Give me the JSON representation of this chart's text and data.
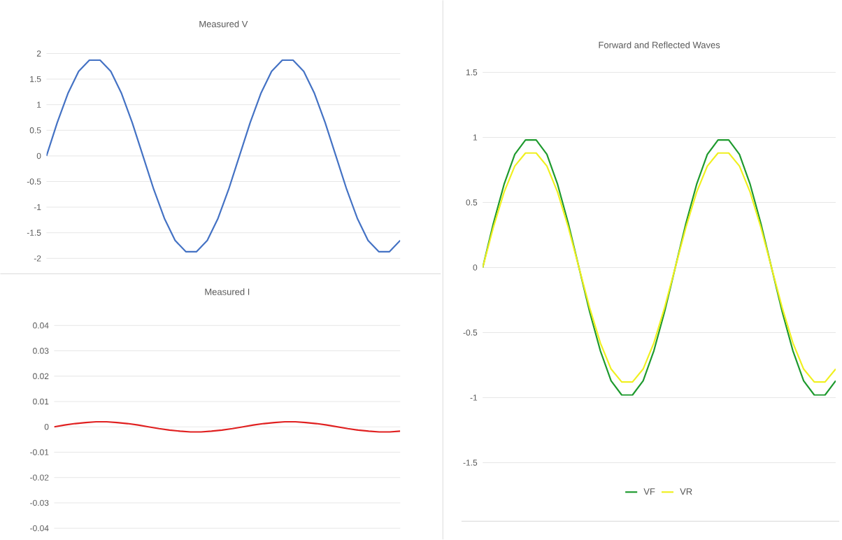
{
  "chart_data": [
    {
      "type": "line",
      "title": "Measured V",
      "categories": [
        null,
        null,
        null,
        null,
        null,
        null,
        null,
        null,
        null,
        null,
        null,
        null,
        null,
        null,
        null,
        null,
        null,
        null,
        null,
        null,
        null,
        null,
        null,
        null,
        null,
        null,
        null,
        null,
        null,
        null,
        null,
        null,
        null,
        null
      ],
      "series": [
        {
          "color": "#4472c4",
          "values": [
            0,
            0.65,
            1.22,
            1.65,
            1.87,
            1.87,
            1.65,
            1.22,
            0.65,
            0,
            -0.65,
            -1.22,
            -1.65,
            -1.87,
            -1.87,
            -1.65,
            -1.22,
            -0.65,
            0,
            0.65,
            1.22,
            1.65,
            1.87,
            1.87,
            1.65,
            1.22,
            0.65,
            0,
            -0.65,
            -1.22,
            -1.65,
            -1.87,
            -1.87,
            -1.65
          ]
        }
      ],
      "ylim": [
        -2,
        2
      ],
      "yticks": [
        -2,
        -1.5,
        -1,
        -0.5,
        0,
        0.5,
        1,
        1.5,
        2
      ],
      "grid": "y"
    },
    {
      "type": "line",
      "title": "Forward and Reflected Waves",
      "categories": [
        null,
        null,
        null,
        null,
        null,
        null,
        null,
        null,
        null,
        null,
        null,
        null,
        null,
        null,
        null,
        null,
        null,
        null,
        null,
        null,
        null,
        null,
        null,
        null,
        null,
        null,
        null,
        null,
        null,
        null,
        null,
        null,
        null,
        null
      ],
      "series": [
        {
          "name": "VF",
          "color": "#1e9a2e",
          "values": [
            0,
            0.34,
            0.64,
            0.87,
            0.98,
            0.98,
            0.87,
            0.64,
            0.34,
            0,
            -0.34,
            -0.64,
            -0.87,
            -0.98,
            -0.98,
            -0.87,
            -0.64,
            -0.34,
            0,
            0.34,
            0.64,
            0.87,
            0.98,
            0.98,
            0.87,
            0.64,
            0.34,
            0,
            -0.34,
            -0.64,
            -0.87,
            -0.98,
            -0.98,
            -0.87
          ]
        },
        {
          "name": "VR",
          "color": "#f0f020",
          "values": [
            0,
            0.31,
            0.58,
            0.78,
            0.88,
            0.88,
            0.78,
            0.58,
            0.31,
            0,
            -0.31,
            -0.58,
            -0.78,
            -0.88,
            -0.88,
            -0.78,
            -0.58,
            -0.31,
            0,
            0.31,
            0.58,
            0.78,
            0.88,
            0.88,
            0.78,
            0.58,
            0.31,
            0,
            -0.31,
            -0.58,
            -0.78,
            -0.88,
            -0.88,
            -0.78
          ]
        }
      ],
      "ylim": [
        -1.95,
        1.5
      ],
      "yticks": [
        -1.5,
        -1,
        -0.5,
        0,
        0.5,
        1,
        1.5
      ],
      "grid": "y",
      "legend": "bottom"
    },
    {
      "type": "line",
      "title": "Measured I",
      "categories": [
        null,
        null,
        null,
        null,
        null,
        null,
        null,
        null,
        null,
        null,
        null,
        null,
        null,
        null,
        null,
        null,
        null,
        null,
        null,
        null,
        null,
        null,
        null,
        null,
        null,
        null,
        null,
        null,
        null,
        null,
        null,
        null,
        null,
        null
      ],
      "series": [
        {
          "color": "#e02020",
          "values": [
            0,
            0.0007,
            0.0013,
            0.0017,
            0.002,
            0.002,
            0.0017,
            0.0013,
            0.0007,
            0,
            -0.0007,
            -0.0013,
            -0.0017,
            -0.002,
            -0.002,
            -0.0017,
            -0.0013,
            -0.0007,
            0,
            0.0007,
            0.0013,
            0.0017,
            0.002,
            0.002,
            0.0017,
            0.0013,
            0.0007,
            0,
            -0.0007,
            -0.0013,
            -0.0017,
            -0.002,
            -0.002,
            -0.0017
          ]
        }
      ],
      "ylim": [
        -0.04,
        0.04
      ],
      "yticks": [
        -0.04,
        -0.03,
        -0.02,
        -0.01,
        0,
        0.01,
        0.02,
        0.03,
        0.04
      ],
      "grid": "y"
    }
  ]
}
